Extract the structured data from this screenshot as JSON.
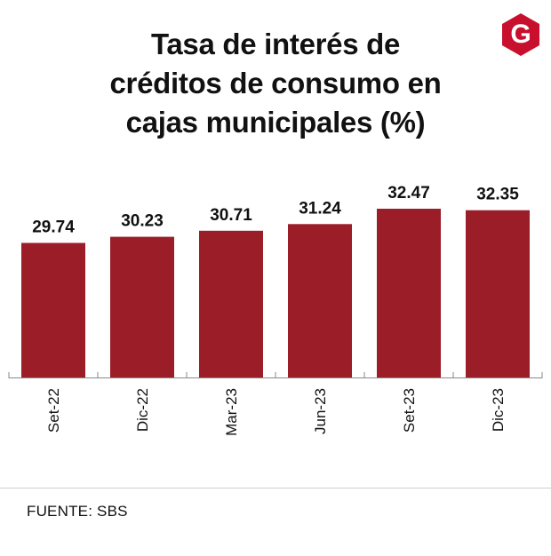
{
  "header": {
    "title_lines": [
      "Tasa de interés de",
      "créditos de consumo en",
      "cajas municipales (%)"
    ],
    "logo_letter": "G"
  },
  "colors": {
    "bar": "#9b1d27",
    "logo": "#c8102e",
    "axis": "#8a8a8a",
    "text": "#111111"
  },
  "chart_data": {
    "type": "bar",
    "title": "Tasa de interés de créditos de consumo en cajas municipales (%)",
    "categories": [
      "Set-22",
      "Dic-22",
      "Mar-23",
      "Jun-23",
      "Set-23",
      "Dic-23"
    ],
    "values": [
      29.74,
      30.23,
      30.71,
      31.24,
      32.47,
      32.35
    ],
    "value_labels": [
      "29.74",
      "30.23",
      "30.71",
      "31.24",
      "32.47",
      "32.35"
    ],
    "xlabel": "",
    "ylabel": "",
    "ylim": [
      19.0,
      32.47
    ],
    "grid": false,
    "legend": "none"
  },
  "footer": {
    "source": "FUENTE: SBS"
  }
}
